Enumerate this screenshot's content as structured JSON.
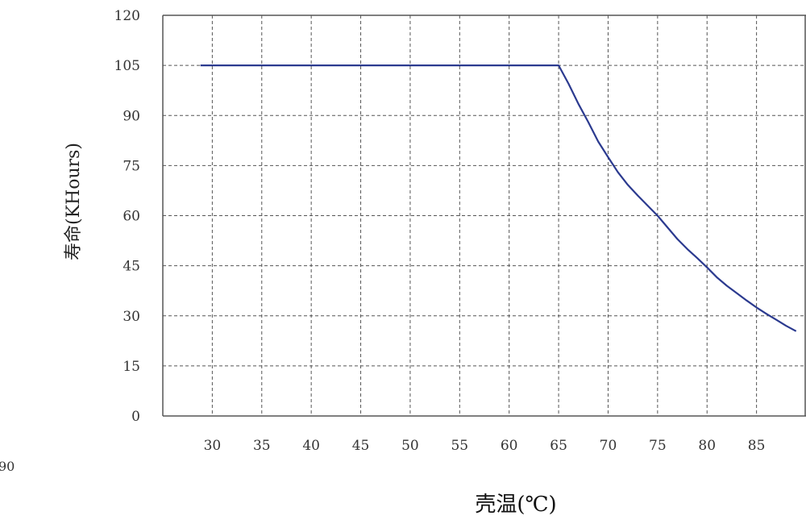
{
  "chart_data": {
    "type": "line",
    "title": "",
    "xlabel": "壳温(℃)",
    "ylabel": "寿命(KHours)",
    "xlim": [
      25,
      90
    ],
    "ylim": [
      0,
      120
    ],
    "x_ticks": [
      "30",
      "35",
      "40",
      "45",
      "50",
      "55",
      "60",
      "65",
      "70",
      "75",
      "80",
      "85"
    ],
    "y_ticks": [
      "0",
      "15",
      "30",
      "45",
      "60",
      "75",
      "90",
      "105",
      "120"
    ],
    "grid": true,
    "legend": "none",
    "stray_label": "90",
    "series": [
      {
        "x": [
          28.8,
          65,
          66,
          67,
          68,
          69,
          70,
          71,
          72,
          73,
          74,
          75,
          76,
          77,
          78,
          79,
          80,
          81,
          82,
          83,
          84,
          85,
          86,
          87,
          88,
          89
        ],
        "y": [
          105,
          105,
          99.5,
          93.5,
          88,
          82.2,
          77.5,
          73,
          69.2,
          66,
          63,
          60,
          56.5,
          53,
          50,
          47.3,
          44.5,
          41.5,
          39,
          36.8,
          34.6,
          32.5,
          30.6,
          28.8,
          27,
          25.4
        ],
        "color": "#2b3a8f"
      }
    ]
  }
}
